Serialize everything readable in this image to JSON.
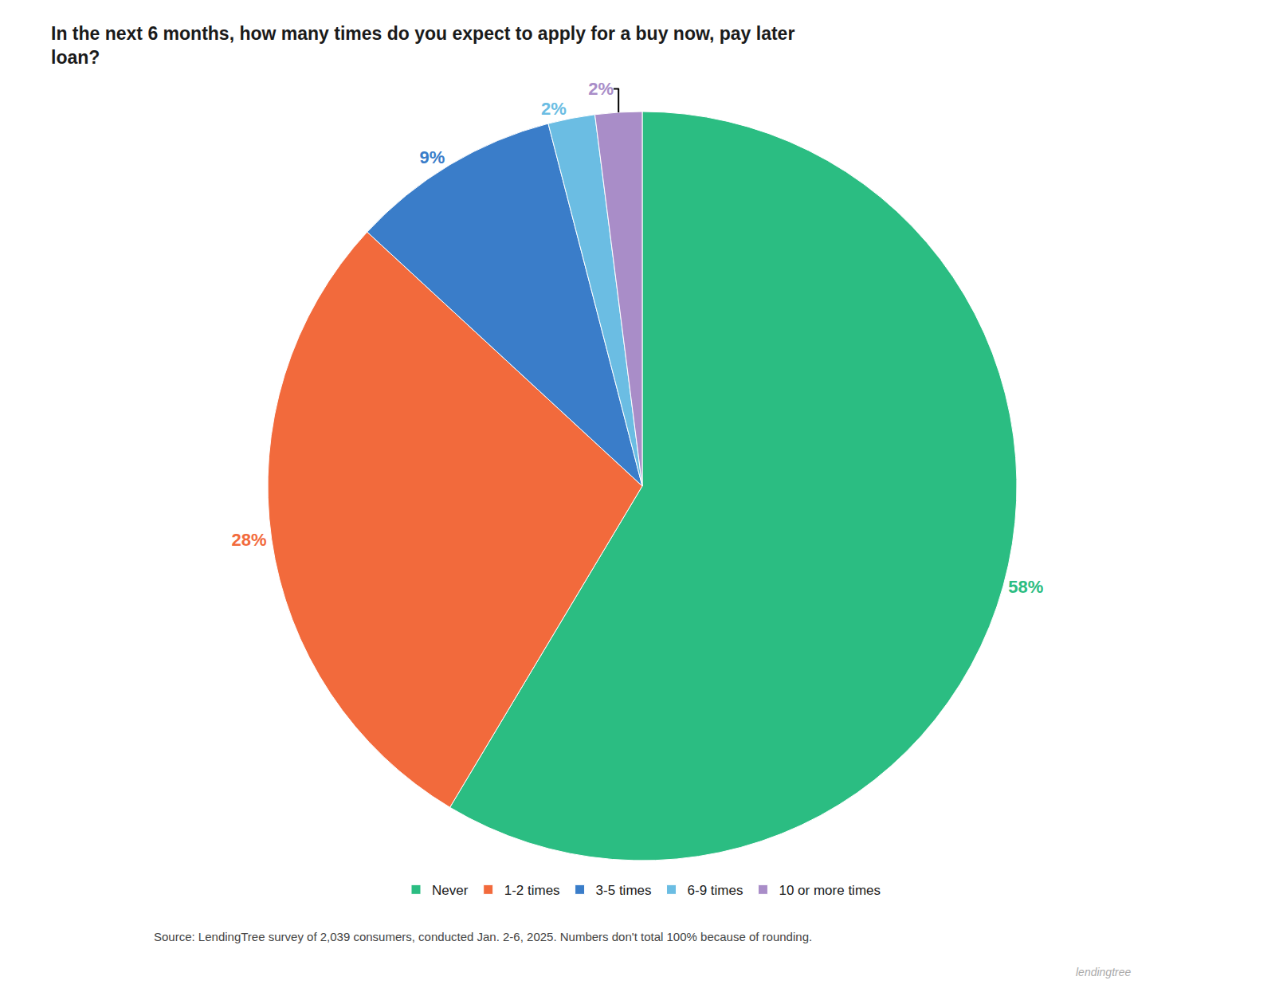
{
  "chart_data": {
    "type": "pie",
    "title": "In the next 6 months, how many times do you expect to apply for a buy now, pay later\nloan?",
    "categories": [
      "Never",
      "1-2 times",
      "3-5 times",
      "6-9 times",
      "10 or more times"
    ],
    "values": [
      58,
      28,
      9,
      2,
      2
    ],
    "value_labels": [
      "58%",
      "28%",
      "9%",
      "2%",
      "2%"
    ],
    "colors": [
      "#2BBD82",
      "#F26A3C",
      "#3A7DC9",
      "#6BBDE3",
      "#A98DC8"
    ],
    "data_labels": true,
    "legend": "bottom",
    "annotations": [
      "Source: LendingTree survey of 2,039 consumers, conducted Jan. 2-6, 2025. Numbers don't total 100% because of rounding.",
      "lendingtree"
    ]
  }
}
